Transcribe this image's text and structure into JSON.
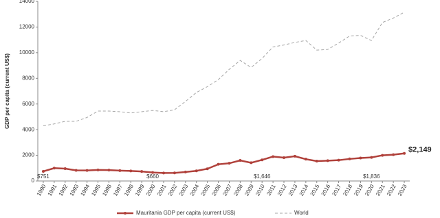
{
  "chart_data": {
    "type": "line",
    "y_label": "GDP per capita (current US$)",
    "categories": [
      "1990",
      "1991",
      "1992",
      "1993",
      "1994",
      "1995",
      "1996",
      "1997",
      "1998",
      "1999",
      "2000",
      "2001",
      "2002",
      "2003",
      "2004",
      "2005",
      "2006",
      "2007",
      "2008",
      "2009",
      "2010",
      "2011",
      "2012",
      "2013",
      "2014",
      "2015",
      "2016",
      "2017",
      "2018",
      "2019",
      "2020",
      "2021",
      "2022",
      "2023"
    ],
    "series": [
      {
        "name": "Mauritania GDP per capita (current US$)",
        "color": "#b0413b",
        "dashed": false,
        "values": [
          751,
          1000,
          960,
          830,
          820,
          860,
          850,
          810,
          780,
          740,
          660,
          620,
          630,
          700,
          790,
          950,
          1300,
          1380,
          1600,
          1420,
          1646,
          1900,
          1820,
          1930,
          1700,
          1550,
          1580,
          1620,
          1720,
          1790,
          1836,
          2000,
          2050,
          2149
        ],
        "value_labels": [
          "$751",
          null,
          null,
          null,
          null,
          null,
          null,
          null,
          null,
          null,
          "$660",
          null,
          null,
          null,
          null,
          null,
          null,
          null,
          null,
          null,
          "$1,646",
          null,
          null,
          null,
          null,
          null,
          null,
          null,
          null,
          null,
          "$1,836",
          null,
          null,
          "$2,149"
        ]
      },
      {
        "name": "World",
        "color": "#a6a6a6",
        "dashed": true,
        "values": [
          4300,
          4450,
          4650,
          4650,
          4950,
          5450,
          5450,
          5400,
          5300,
          5400,
          5500,
          5400,
          5550,
          6200,
          6900,
          7350,
          7900,
          8700,
          9400,
          8850,
          9550,
          10450,
          10600,
          10800,
          10950,
          10200,
          10250,
          10750,
          11300,
          11350,
          10950,
          12350,
          12700,
          13150
        ]
      }
    ],
    "ylim": [
      0,
      14000
    ],
    "yticks": [
      0,
      2000,
      4000,
      6000,
      8000,
      10000,
      12000,
      14000
    ],
    "grid": false
  }
}
